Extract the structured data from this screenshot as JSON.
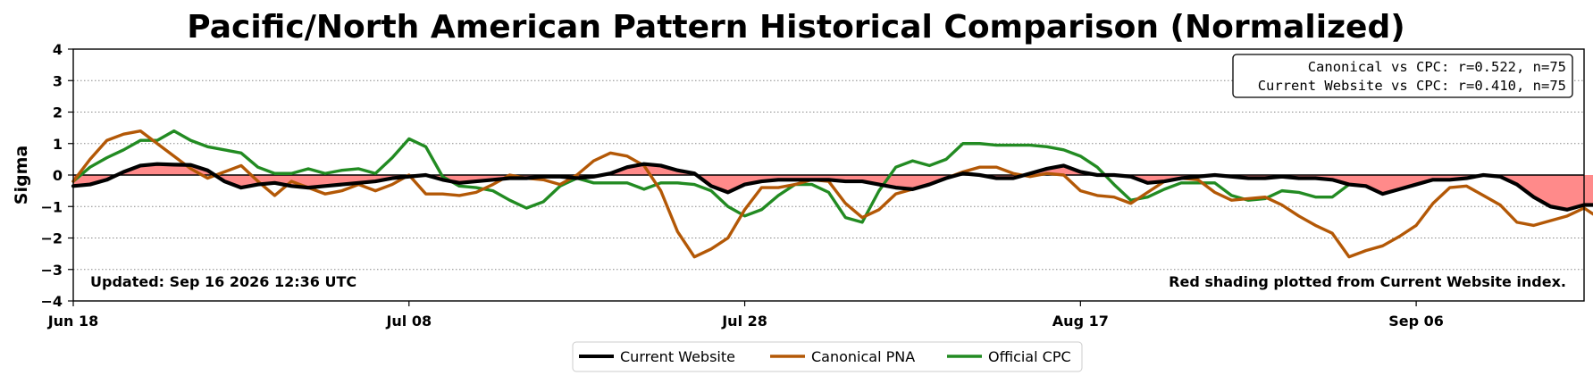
{
  "chart_data": {
    "type": "line",
    "title": "Pacific/North American Pattern Historical Comparison (Normalized)",
    "xlabel": "",
    "ylabel": "Sigma",
    "ylim": [
      -4,
      4
    ],
    "yticks": [
      "4",
      "3",
      "2",
      "1",
      "0",
      "−1",
      "−2",
      "−3",
      "−4"
    ],
    "xticks": [
      "Jun 18",
      "Jul 08",
      "Jul 28",
      "Aug 17",
      "Sep 06"
    ],
    "x_start": "Jun 18",
    "x_end": "Sep 16",
    "grid": "horizontal dotted",
    "shading": "Red shading plotted from Current Website index.",
    "updated": "Updated: Sep 16 2026 12:36 UTC",
    "stats": [
      "Canonical vs CPC: r=0.522, n=75",
      "Current Website vs CPC: r=0.410, n=75"
    ],
    "legend_position": "bottom-center",
    "series": [
      {
        "name": "Current Website",
        "color": "#000000",
        "values": [
          -0.35,
          -0.3,
          -0.15,
          0.1,
          0.3,
          0.35,
          0.33,
          0.32,
          0.15,
          -0.2,
          -0.4,
          -0.3,
          -0.25,
          -0.35,
          -0.4,
          -0.35,
          -0.3,
          -0.25,
          -0.2,
          -0.1,
          -0.05,
          0.0,
          -0.15,
          -0.25,
          -0.2,
          -0.15,
          -0.1,
          -0.1,
          -0.05,
          -0.05,
          -0.1,
          -0.05,
          0.05,
          0.25,
          0.35,
          0.3,
          0.15,
          0.05,
          -0.35,
          -0.55,
          -0.3,
          -0.2,
          -0.15,
          -0.15,
          -0.15,
          -0.15,
          -0.2,
          -0.2,
          -0.3,
          -0.4,
          -0.45,
          -0.3,
          -0.1,
          0.05,
          0.0,
          -0.1,
          -0.1,
          0.05,
          0.2,
          0.3,
          0.1,
          0.0,
          0.0,
          -0.05,
          -0.25,
          -0.2,
          -0.1,
          -0.05,
          0.0,
          -0.05,
          -0.1,
          -0.1,
          -0.05,
          -0.1,
          -0.1,
          -0.15,
          -0.3,
          -0.35,
          -0.6,
          -0.45,
          -0.3,
          -0.15,
          -0.15,
          -0.1,
          0.0,
          -0.05,
          -0.3,
          -0.7,
          -1.0,
          -1.1,
          -0.95,
          -0.95,
          -0.8
        ]
      },
      {
        "name": "Canonical PNA",
        "color": "#b35806",
        "values": [
          -0.2,
          0.5,
          1.1,
          1.3,
          1.4,
          1.0,
          0.6,
          0.2,
          -0.1,
          0.1,
          0.3,
          -0.2,
          -0.65,
          -0.2,
          -0.4,
          -0.6,
          -0.5,
          -0.3,
          -0.5,
          -0.3,
          0.0,
          -0.6,
          -0.6,
          -0.65,
          -0.55,
          -0.3,
          0.0,
          -0.1,
          -0.15,
          -0.3,
          0.0,
          0.45,
          0.7,
          0.6,
          0.3,
          -0.5,
          -1.8,
          -2.6,
          -2.35,
          -2.0,
          -1.1,
          -0.4,
          -0.4,
          -0.3,
          -0.15,
          -0.2,
          -0.9,
          -1.35,
          -1.1,
          -0.6,
          -0.45,
          -0.3,
          -0.1,
          0.1,
          0.25,
          0.25,
          0.05,
          -0.05,
          0.05,
          0.0,
          -0.5,
          -0.65,
          -0.7,
          -0.9,
          -0.55,
          -0.2,
          -0.1,
          -0.15,
          -0.55,
          -0.8,
          -0.75,
          -0.7,
          -0.95,
          -1.3,
          -1.6,
          -1.85,
          -2.6,
          -2.4,
          -2.25,
          -1.95,
          -1.6,
          -0.9,
          -0.4,
          -0.35,
          -0.65,
          -0.95,
          -1.5,
          -1.6,
          -1.45,
          -1.3,
          -1.05,
          -1.4
        ]
      },
      {
        "name": "Official CPC",
        "color": "#228b22",
        "values": [
          -0.2,
          0.25,
          0.55,
          0.8,
          1.1,
          1.1,
          1.4,
          1.1,
          0.9,
          0.8,
          0.7,
          0.25,
          0.05,
          0.05,
          0.2,
          0.05,
          0.15,
          0.2,
          0.05,
          0.55,
          1.15,
          0.9,
          -0.05,
          -0.35,
          -0.4,
          -0.5,
          -0.8,
          -1.05,
          -0.85,
          -0.35,
          -0.1,
          -0.25,
          -0.25,
          -0.25,
          -0.45,
          -0.25,
          -0.25,
          -0.3,
          -0.5,
          -1.0,
          -1.3,
          -1.1,
          -0.65,
          -0.3,
          -0.3,
          -0.55,
          -1.35,
          -1.5,
          -0.5,
          0.25,
          0.45,
          0.3,
          0.5,
          1.0,
          1.0,
          0.95,
          0.95,
          0.95,
          0.9,
          0.8,
          0.6,
          0.25,
          -0.3,
          -0.8,
          -0.7,
          -0.45,
          -0.25,
          -0.25,
          -0.25,
          -0.65,
          -0.8,
          -0.75,
          -0.5,
          -0.55,
          -0.7,
          -0.7,
          -0.3
        ]
      }
    ]
  }
}
